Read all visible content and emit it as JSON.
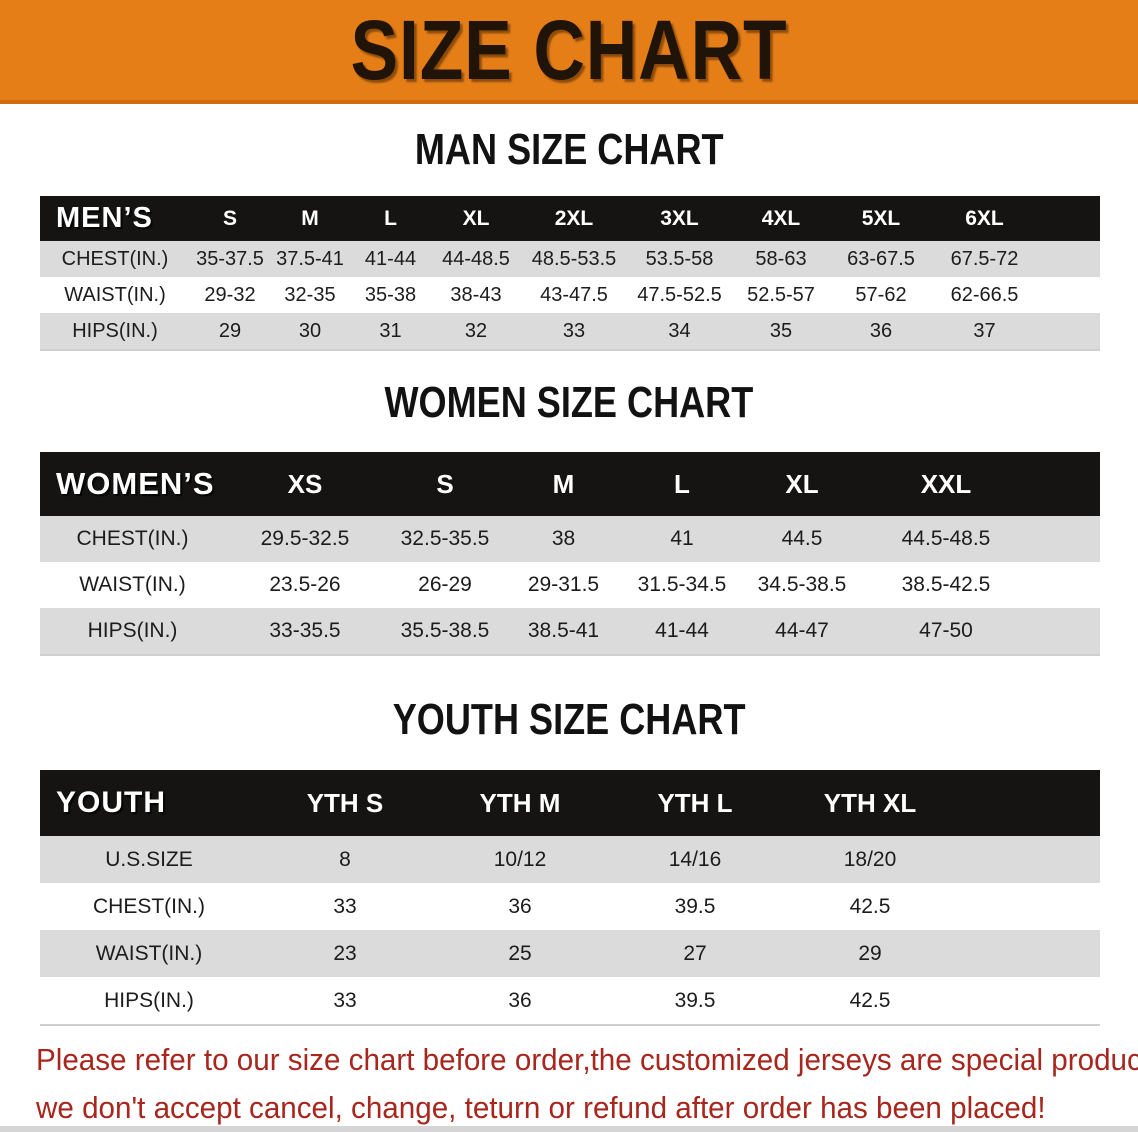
{
  "banner": {
    "title": "SIZE CHART"
  },
  "sections": [
    {
      "heading": "MAN SIZE CHART",
      "table": {
        "header_label": "MEN’S",
        "columns": [
          "S",
          "M",
          "L",
          "XL",
          "2XL",
          "3XL",
          "4XL",
          "5XL",
          "6XL"
        ],
        "rows": [
          {
            "label": "CHEST(IN.)",
            "values": [
              "35-37.5",
              "37.5-41",
              "41-44",
              "44-48.5",
              "48.5-53.5",
              "53.5-58",
              "58-63",
              "63-67.5",
              "67.5-72"
            ]
          },
          {
            "label": "WAIST(IN.)",
            "values": [
              "29-32",
              "32-35",
              "35-38",
              "38-43",
              "43-47.5",
              "47.5-52.5",
              "52.5-57",
              "57-62",
              "62-66.5"
            ]
          },
          {
            "label": "HIPS(IN.)",
            "values": [
              "29",
              "30",
              "31",
              "32",
              "33",
              "34",
              "35",
              "36",
              "37"
            ]
          }
        ]
      }
    },
    {
      "heading": "WOMEN SIZE CHART",
      "table": {
        "header_label": "WOMEN’S",
        "columns": [
          "XS",
          "S",
          "M",
          "L",
          "XL",
          "XXL"
        ],
        "rows": [
          {
            "label": "CHEST(IN.)",
            "values": [
              "29.5-32.5",
              "32.5-35.5",
              "38",
              "41",
              "44.5",
              "44.5-48.5"
            ]
          },
          {
            "label": "WAIST(IN.)",
            "values": [
              "23.5-26",
              "26-29",
              "29-31.5",
              "31.5-34.5",
              "34.5-38.5",
              "38.5-42.5"
            ]
          },
          {
            "label": "HIPS(IN.)",
            "values": [
              "33-35.5",
              "35.5-38.5",
              "38.5-41",
              "41-44",
              "44-47",
              "47-50"
            ]
          }
        ]
      }
    },
    {
      "heading": "YOUTH SIZE CHART",
      "table": {
        "header_label": "YOUTH",
        "columns": [
          "YTH S",
          "YTH M",
          "YTH L",
          "YTH XL"
        ],
        "rows": [
          {
            "label": "U.S.SIZE",
            "values": [
              "8",
              "10/12",
              "14/16",
              "18/20"
            ]
          },
          {
            "label": "CHEST(IN.)",
            "values": [
              "33",
              "36",
              "39.5",
              "42.5"
            ]
          },
          {
            "label": "WAIST(IN.)",
            "values": [
              "23",
              "25",
              "27",
              "29"
            ]
          },
          {
            "label": "HIPS(IN.)",
            "values": [
              "33",
              "36",
              "39.5",
              "42.5"
            ]
          }
        ]
      }
    }
  ],
  "footer_note": {
    "lines": [
      "Please refer to our size chart before order,the customized jerseys are special products,",
      "we don't accept cancel, change, teturn or refund after order has been placed!"
    ]
  },
  "colors": {
    "banner_orange": "#E67E17",
    "table_header_black": "#151413",
    "stripe_gray": "#DBDBDB",
    "note_red": "#A7271E"
  }
}
